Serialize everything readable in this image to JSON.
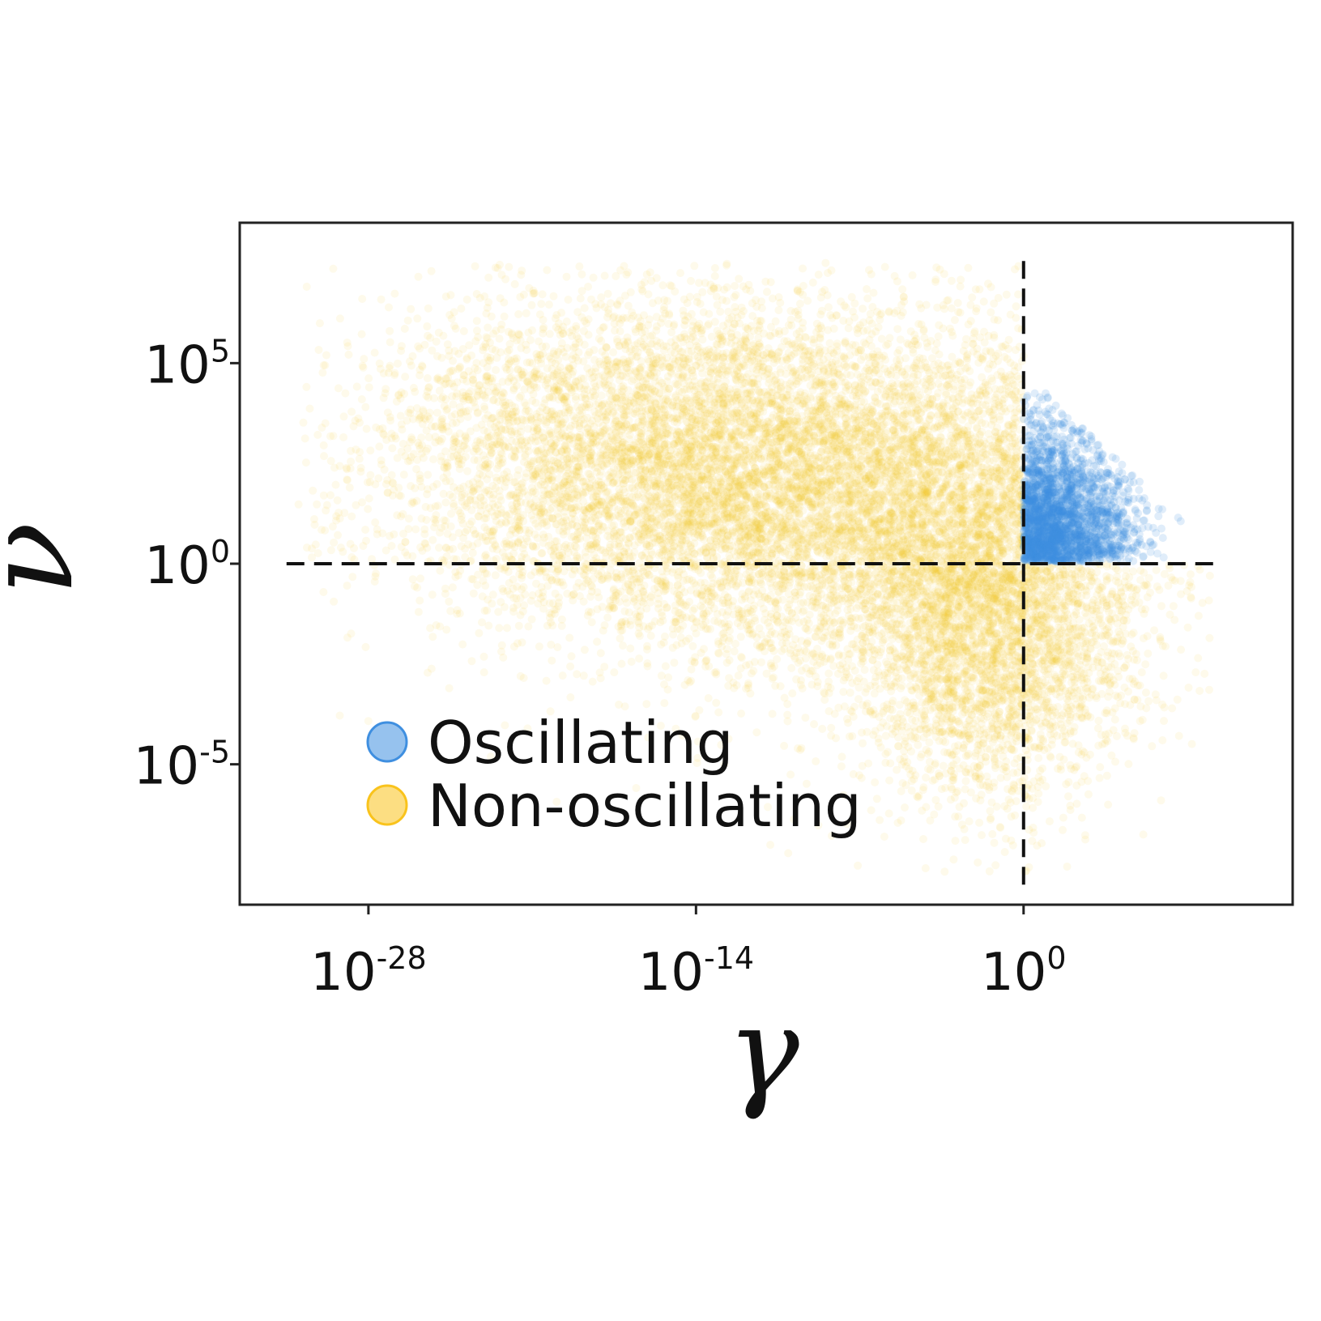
{
  "chart_data": {
    "type": "scatter",
    "title": "",
    "xlabel": "γ",
    "ylabel": "ν",
    "x_scale": "log",
    "y_scale": "log",
    "xlim_exponent": [
      -33.5,
      11.5
    ],
    "ylim_exponent": [
      -8.5,
      8.5
    ],
    "x_ticks": [
      {
        "base": "10",
        "exp": "-28",
        "value_exponent": -28
      },
      {
        "base": "10",
        "exp": "-14",
        "value_exponent": -14
      },
      {
        "base": "10",
        "exp": "0",
        "value_exponent": 0
      }
    ],
    "y_ticks": [
      {
        "base": "10",
        "exp": "5",
        "value_exponent": 5
      },
      {
        "base": "10",
        "exp": "0",
        "value_exponent": 0
      },
      {
        "base": "10",
        "exp": "-5",
        "value_exponent": -5
      }
    ],
    "reference_lines": [
      {
        "orientation": "horizontal",
        "y_exponent": 0,
        "x_from_exponent": -31.5,
        "x_to_exponent": 8.5,
        "style": "dashed"
      },
      {
        "orientation": "vertical",
        "x_exponent": 0,
        "y_from_exponent": -8,
        "y_to_exponent": 7.7,
        "style": "dashed"
      }
    ],
    "legend_position": "lower-left",
    "grid": false,
    "series": [
      {
        "name": "Non-oscillating",
        "color": "#f9c31c",
        "n_points": 16000,
        "clusters": [
          {
            "weight": 0.55,
            "center_x_exponent": -8,
            "center_y_exponent": 1.8,
            "sd_x": 7.5,
            "sd_y": 2.2
          },
          {
            "weight": 0.25,
            "center_x_exponent": -1.5,
            "center_y_exponent": -1.5,
            "sd_x": 3,
            "sd_y": 2.2
          },
          {
            "weight": 0.2,
            "center_x_exponent": -17,
            "center_y_exponent": 3,
            "sd_x": 6,
            "sd_y": 2
          }
        ]
      },
      {
        "name": "Oscillating",
        "color": "#3f8fe0",
        "n_points": 2500,
        "region": {
          "x_min_exponent": 0,
          "x_max_exponent": 7,
          "y_min_exponent": 0,
          "y_max_exponent": 5
        }
      }
    ]
  }
}
